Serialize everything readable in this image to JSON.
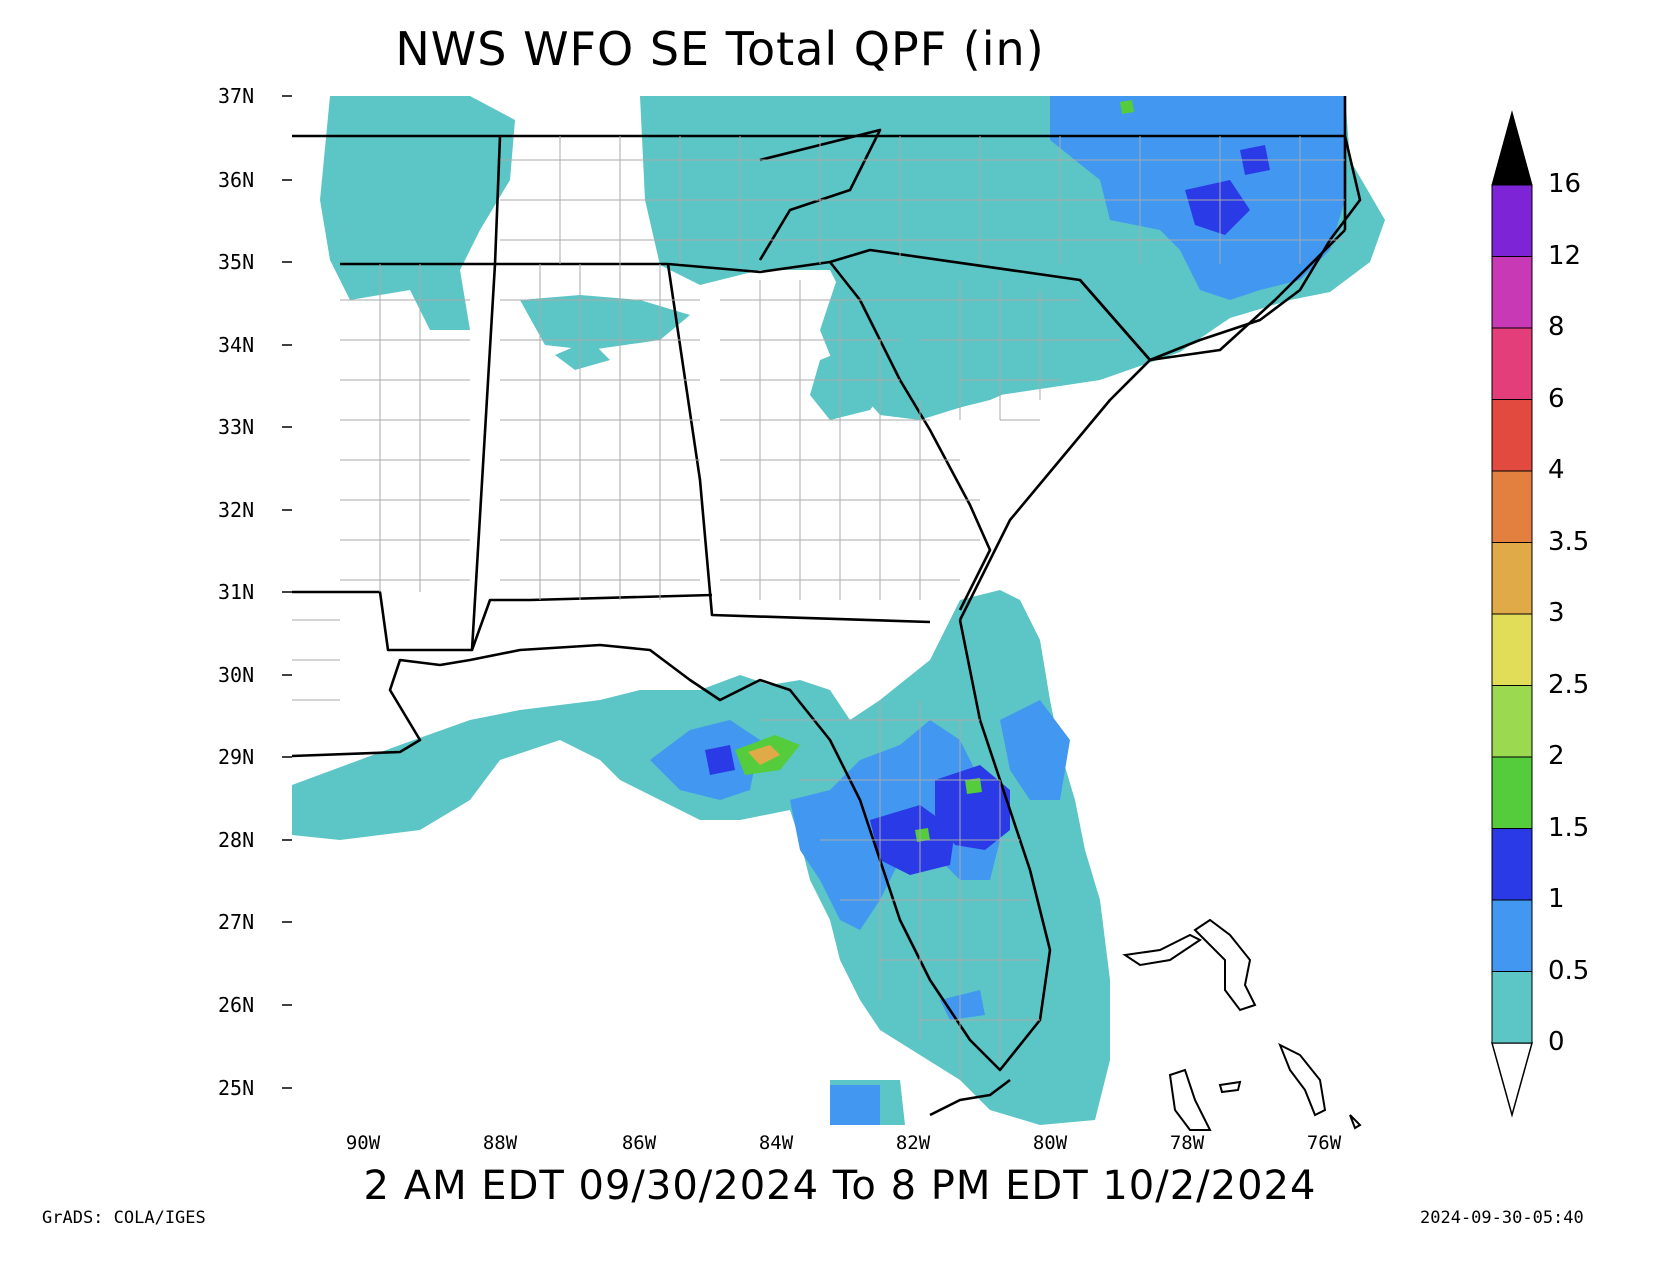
{
  "title": "NWS WFO SE Total QPF (in)",
  "subtitle": "2 AM EDT 09/30/2024 To 8 PM EDT 10/2/2024",
  "credit": "GrADS: COLA/IGES",
  "timestamp": "2024-09-30-05:40",
  "lat_labels": [
    "37N",
    "36N",
    "35N",
    "34N",
    "33N",
    "32N",
    "31N",
    "30N",
    "29N",
    "28N",
    "27N",
    "26N",
    "25N"
  ],
  "lon_labels": [
    "90W",
    "88W",
    "86W",
    "84W",
    "82W",
    "80W",
    "78W",
    "76W"
  ],
  "colorbar": {
    "labels": [
      "0",
      "0.5",
      "1",
      "1.5",
      "2",
      "2.5",
      "3",
      "3.5",
      "4",
      "6",
      "8",
      "12",
      "16"
    ],
    "colors": [
      "#5cc5c5",
      "#4297f0",
      "#2a3ae6",
      "#54cc3c",
      "#9bd951",
      "#e1dd58",
      "#e1aa48",
      "#e3803f",
      "#e34a3f",
      "#e33d7a",
      "#c83ab5",
      "#7d24d6",
      "#000000"
    ]
  }
}
